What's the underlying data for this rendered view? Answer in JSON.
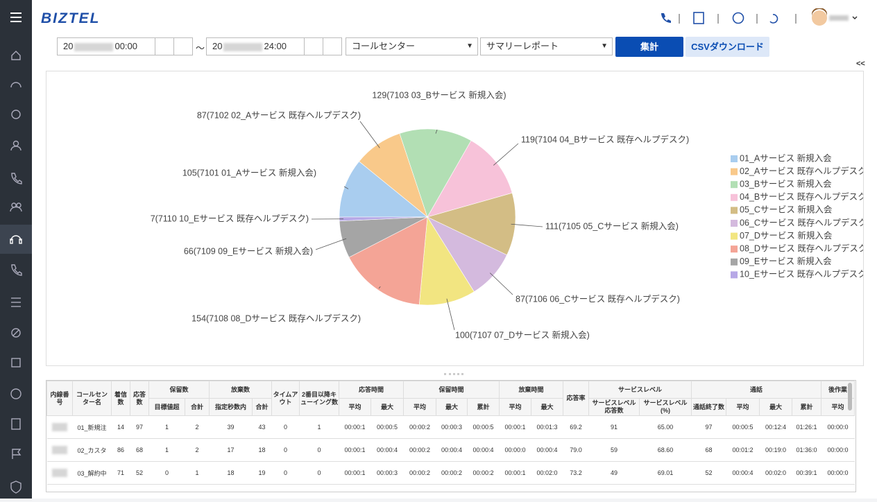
{
  "header": {
    "logo": "BIZTEL"
  },
  "toolbar": {
    "date_from_prefix": "20",
    "time_from": "00:00",
    "separator": "〜",
    "date_to_prefix": "20",
    "time_to": "24:00",
    "select_group": "コールセンター",
    "select_report": "サマリーレポート",
    "aggregate_button": "集計",
    "csv_button": "CSVダウンロード",
    "collapse": "<<"
  },
  "pie": {
    "type": "pie",
    "values": [
      105,
      87,
      129,
      119,
      111,
      87,
      100,
      154,
      66,
      7
    ],
    "value_labels": [
      "105(7101 01_Aサービス 新規入会)",
      "87(7102 02_Aサービス 既存ヘルプデスク)",
      "129(7103 03_Bサービス 新規入会)",
      "119(7104 04_Bサービス 既存ヘルプデスク)",
      "111(7105 05_Cサービス 新規入会)",
      "87(7106 06_Cサービス 既存ヘルプデスク)",
      "100(7107 07_Dサービス 新規入会)",
      "154(7108 08_Dサービス 既存ヘルプデスク)",
      "66(7109 09_Eサービス 新規入会)",
      "7(7110 10_Eサービス 既存ヘルプデスク)"
    ],
    "names": [
      "01_Aサービス 新規入会",
      "02_Aサービス 既存ヘルプデスク",
      "03_Bサービス 新規入会",
      "04_Bサービス 既存ヘルプデスク",
      "05_Cサービス 新規入会",
      "06_Cサービス 既存ヘルプデスク",
      "07_Dサービス 新規入会",
      "08_Dサービス 既存ヘルプデスク",
      "09_Eサービス 新規入会",
      "10_Eサービス 既存ヘルプデスク"
    ],
    "colors": [
      "#a9cdef",
      "#f9c98a",
      "#b2dfb4",
      "#f7c2d9",
      "#d3bd85",
      "#d4bade",
      "#f2e581",
      "#f4a496",
      "#a5a5a5",
      "#b7a8e6"
    ],
    "legend": "right"
  },
  "table": {
    "header": [
      {
        "label": "内線番号"
      },
      {
        "label": "コールセンター名"
      },
      {
        "label": "着信数"
      },
      {
        "label": "応答数"
      },
      {
        "label": "保留数",
        "sub": [
          "目標値超",
          "合計"
        ]
      },
      {
        "label": "放棄数",
        "sub": [
          "指定秒数内",
          "合計"
        ]
      },
      {
        "label": "タイムアウト"
      },
      {
        "label": "2番目以降キューイング数"
      },
      {
        "label": "応答時間",
        "sub": [
          "平均",
          "最大"
        ]
      },
      {
        "label": "保留時間",
        "sub": [
          "平均",
          "最大",
          "累計"
        ]
      },
      {
        "label": "放棄時間",
        "sub": [
          "平均",
          "最大"
        ]
      },
      {
        "label": "応答率"
      },
      {
        "label": "サービスレベル",
        "sub": [
          "サービスレベル応答数",
          "サービスレベル(%)"
        ]
      },
      {
        "label": "通話",
        "sub": [
          "通話終了数",
          "平均",
          "最大",
          "累計"
        ]
      },
      {
        "label": "後作業",
        "sub": [
          "平均"
        ]
      }
    ],
    "rows": [
      [
        "01_新規注",
        "14",
        "97",
        "1",
        "2",
        "39",
        "43",
        "0",
        "1",
        "00:00:1",
        "00:00:5",
        "00:00:2",
        "00:00:3",
        "00:00:5",
        "00:00:1",
        "00:01:3",
        "69.2",
        "91",
        "65.00",
        "97",
        "00:00:5",
        "00:12:4",
        "01:26:1",
        "00:00:0"
      ],
      [
        "02_カスタ",
        "86",
        "68",
        "1",
        "2",
        "17",
        "18",
        "0",
        "0",
        "00:00:1",
        "00:00:4",
        "00:00:2",
        "00:00:4",
        "00:00:4",
        "00:00:0",
        "00:00:4",
        "79.0",
        "59",
        "68.60",
        "68",
        "00:01:2",
        "00:19:0",
        "01:36:0",
        "00:00:0"
      ],
      [
        "03_解約中",
        "71",
        "52",
        "0",
        "1",
        "18",
        "19",
        "0",
        "0",
        "00:00:1",
        "00:00:3",
        "00:00:2",
        "00:00:2",
        "00:00:2",
        "00:00:1",
        "00:02:0",
        "73.2",
        "49",
        "69.01",
        "52",
        "00:00:4",
        "00:02:0",
        "00:39:1",
        "00:00:0"
      ]
    ]
  }
}
